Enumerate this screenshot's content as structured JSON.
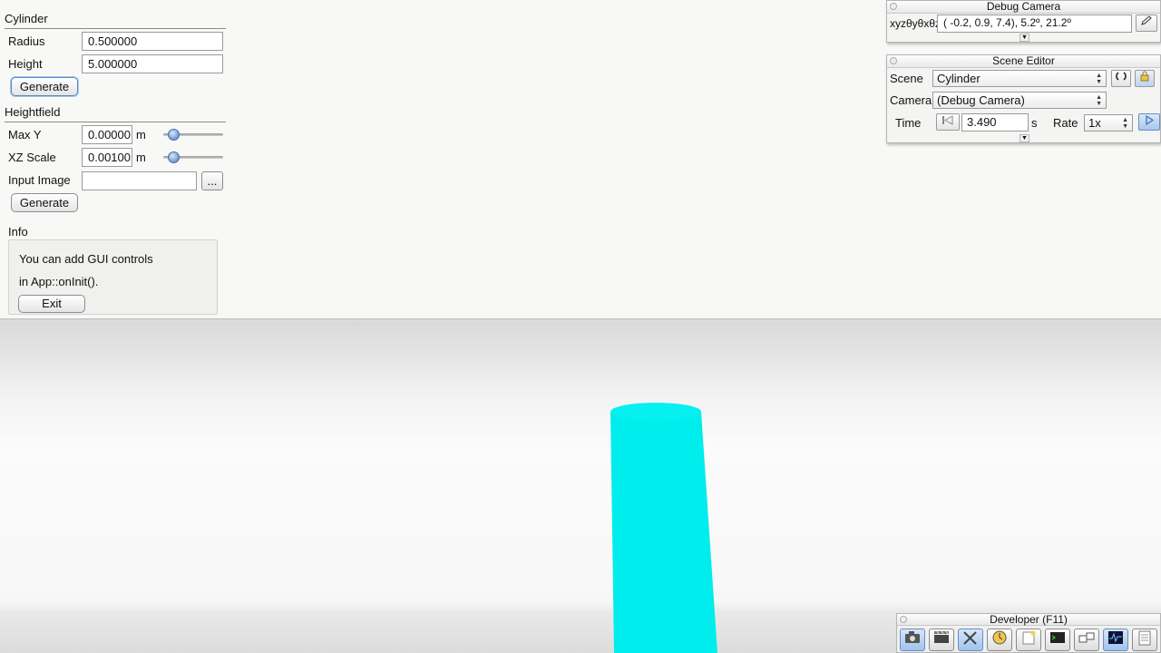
{
  "cylinder_panel": {
    "title": "Cylinder",
    "radius_label": "Radius",
    "radius_value": "0.500000",
    "height_label": "Height",
    "height_value": "5.000000",
    "generate_label": "Generate"
  },
  "heightfield_panel": {
    "title": "Heightfield",
    "max_y_label": "Max Y",
    "max_y_value": "0.00000",
    "max_y_unit": "m",
    "max_y_slider": 0.1,
    "xz_scale_label": "XZ Scale",
    "xz_scale_value": "0.00100",
    "xz_scale_unit": "m",
    "xz_scale_slider": 0.1,
    "input_image_label": "Input Image",
    "input_image_value": "",
    "browse_label": "...",
    "generate_label": "Generate"
  },
  "info_panel": {
    "title": "Info",
    "line1": "You can add GUI controls",
    "line2": "in App::onInit().",
    "exit_label": "Exit"
  },
  "debug_camera": {
    "title": "Debug Camera",
    "label": "xyzθyθxθz",
    "value": "( -0.2,   0.9,   7.4),    5.2º,  21.2º",
    "edit_icon": "pencil-icon"
  },
  "scene_editor": {
    "title": "Scene Editor",
    "scene_label": "Scene",
    "scene_value": "Cylinder",
    "camera_label": "Camera",
    "camera_value": "(Debug Camera)",
    "time_label": "Time",
    "time_value": "3.490",
    "time_unit": "s",
    "rate_label": "Rate",
    "rate_value": "1x",
    "reload_icon": "reload-icon",
    "lock_icon": "lock-icon",
    "play_icon": "play-icon"
  },
  "developer_bar": {
    "title": "Developer (F11)",
    "icons": [
      "camera-icon",
      "clapperboard-icon",
      "tools-icon",
      "clock-icon",
      "note-icon",
      "console-icon",
      "windows-icon",
      "graph-icon",
      "document-icon"
    ]
  },
  "colors": {
    "cylinder": "#00eded",
    "accent": "#5b87c5"
  }
}
